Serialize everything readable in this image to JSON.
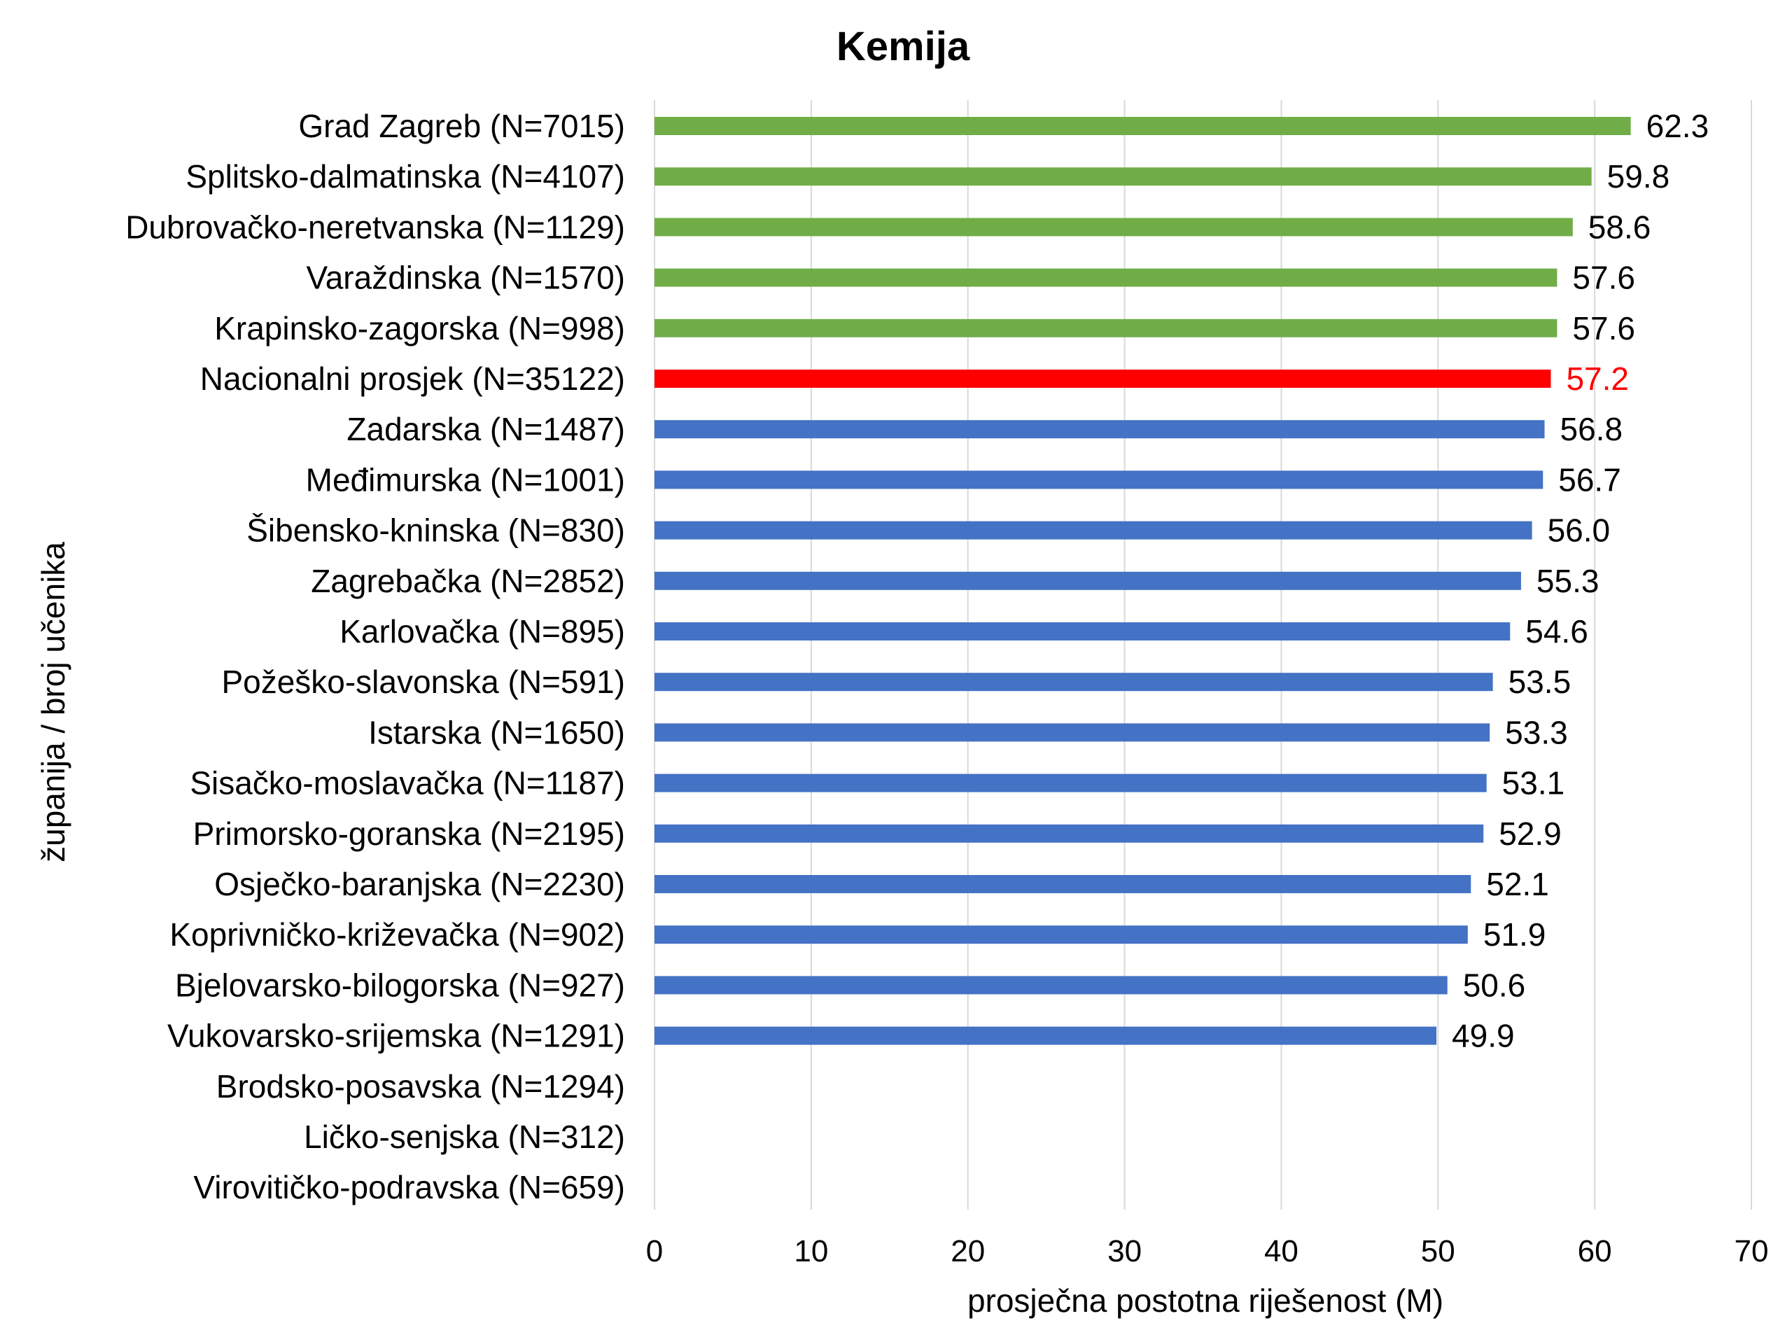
{
  "chart_data": {
    "type": "bar",
    "orientation": "horizontal",
    "title": "Kemija",
    "xlabel": "prosječna postotna riješenost (M)",
    "ylabel": "županija / broj učenika",
    "xlim": [
      0,
      70
    ],
    "xticks": [
      "0",
      "10",
      "20",
      "30",
      "40",
      "50",
      "60",
      "70"
    ],
    "grid": "vertical",
    "legend": "none",
    "categories": [
      "Grad Zagreb (N=7015)",
      "Splitsko-dalmatinska (N=4107)",
      "Dubrovačko-neretvanska (N=1129)",
      "Varaždinska (N=1570)",
      "Krapinsko-zagorska (N=998)",
      "Nacionalni prosjek (N=35122)",
      "Zadarska (N=1487)",
      "Međimurska (N=1001)",
      "Šibensko-kninska (N=830)",
      "Zagrebačka (N=2852)",
      "Karlovačka (N=895)",
      "Požeško-slavonska (N=591)",
      "Istarska (N=1650)",
      "Sisačko-moslavačka (N=1187)",
      "Primorsko-goranska (N=2195)",
      "Osječko-baranjska (N=2230)",
      "Koprivničko-križevačka (N=902)",
      "Bjelovarsko-bilogorska (N=927)",
      "Vukovarsko-srijemska (N=1291)",
      "Brodsko-posavska (N=1294)",
      "Ličko-senjska (N=312)",
      "Virovitičko-podravska (N=659)"
    ],
    "values": [
      62.3,
      59.8,
      58.6,
      57.6,
      57.6,
      57.2,
      56.8,
      56.7,
      56.0,
      55.3,
      54.6,
      53.5,
      53.3,
      53.1,
      52.9,
      52.1,
      51.9,
      50.6,
      49.9,
      null,
      null,
      null
    ],
    "value_labels": [
      "62.3",
      "59.8",
      "58.6",
      "57.6",
      "57.6",
      "57.2",
      "56.8",
      "56.7",
      "56.0",
      "55.3",
      "54.6",
      "53.5",
      "53.3",
      "53.1",
      "52.9",
      "52.1",
      "51.9",
      "50.6",
      "49.9",
      "",
      "",
      ""
    ],
    "bar_colors": [
      "#70ad47",
      "#70ad47",
      "#70ad47",
      "#70ad47",
      "#70ad47",
      "#ff0000",
      "#4472c4",
      "#4472c4",
      "#4472c4",
      "#4472c4",
      "#4472c4",
      "#4472c4",
      "#4472c4",
      "#4472c4",
      "#4472c4",
      "#4472c4",
      "#4472c4",
      "#4472c4",
      "#4472c4",
      "#4472c4",
      "#4472c4",
      "#4472c4"
    ],
    "label_colors": [
      "#000000",
      "#000000",
      "#000000",
      "#000000",
      "#000000",
      "#ff0000",
      "#000000",
      "#000000",
      "#000000",
      "#000000",
      "#000000",
      "#000000",
      "#000000",
      "#000000",
      "#000000",
      "#000000",
      "#000000",
      "#000000",
      "#000000",
      "#000000",
      "#000000",
      "#000000"
    ]
  }
}
